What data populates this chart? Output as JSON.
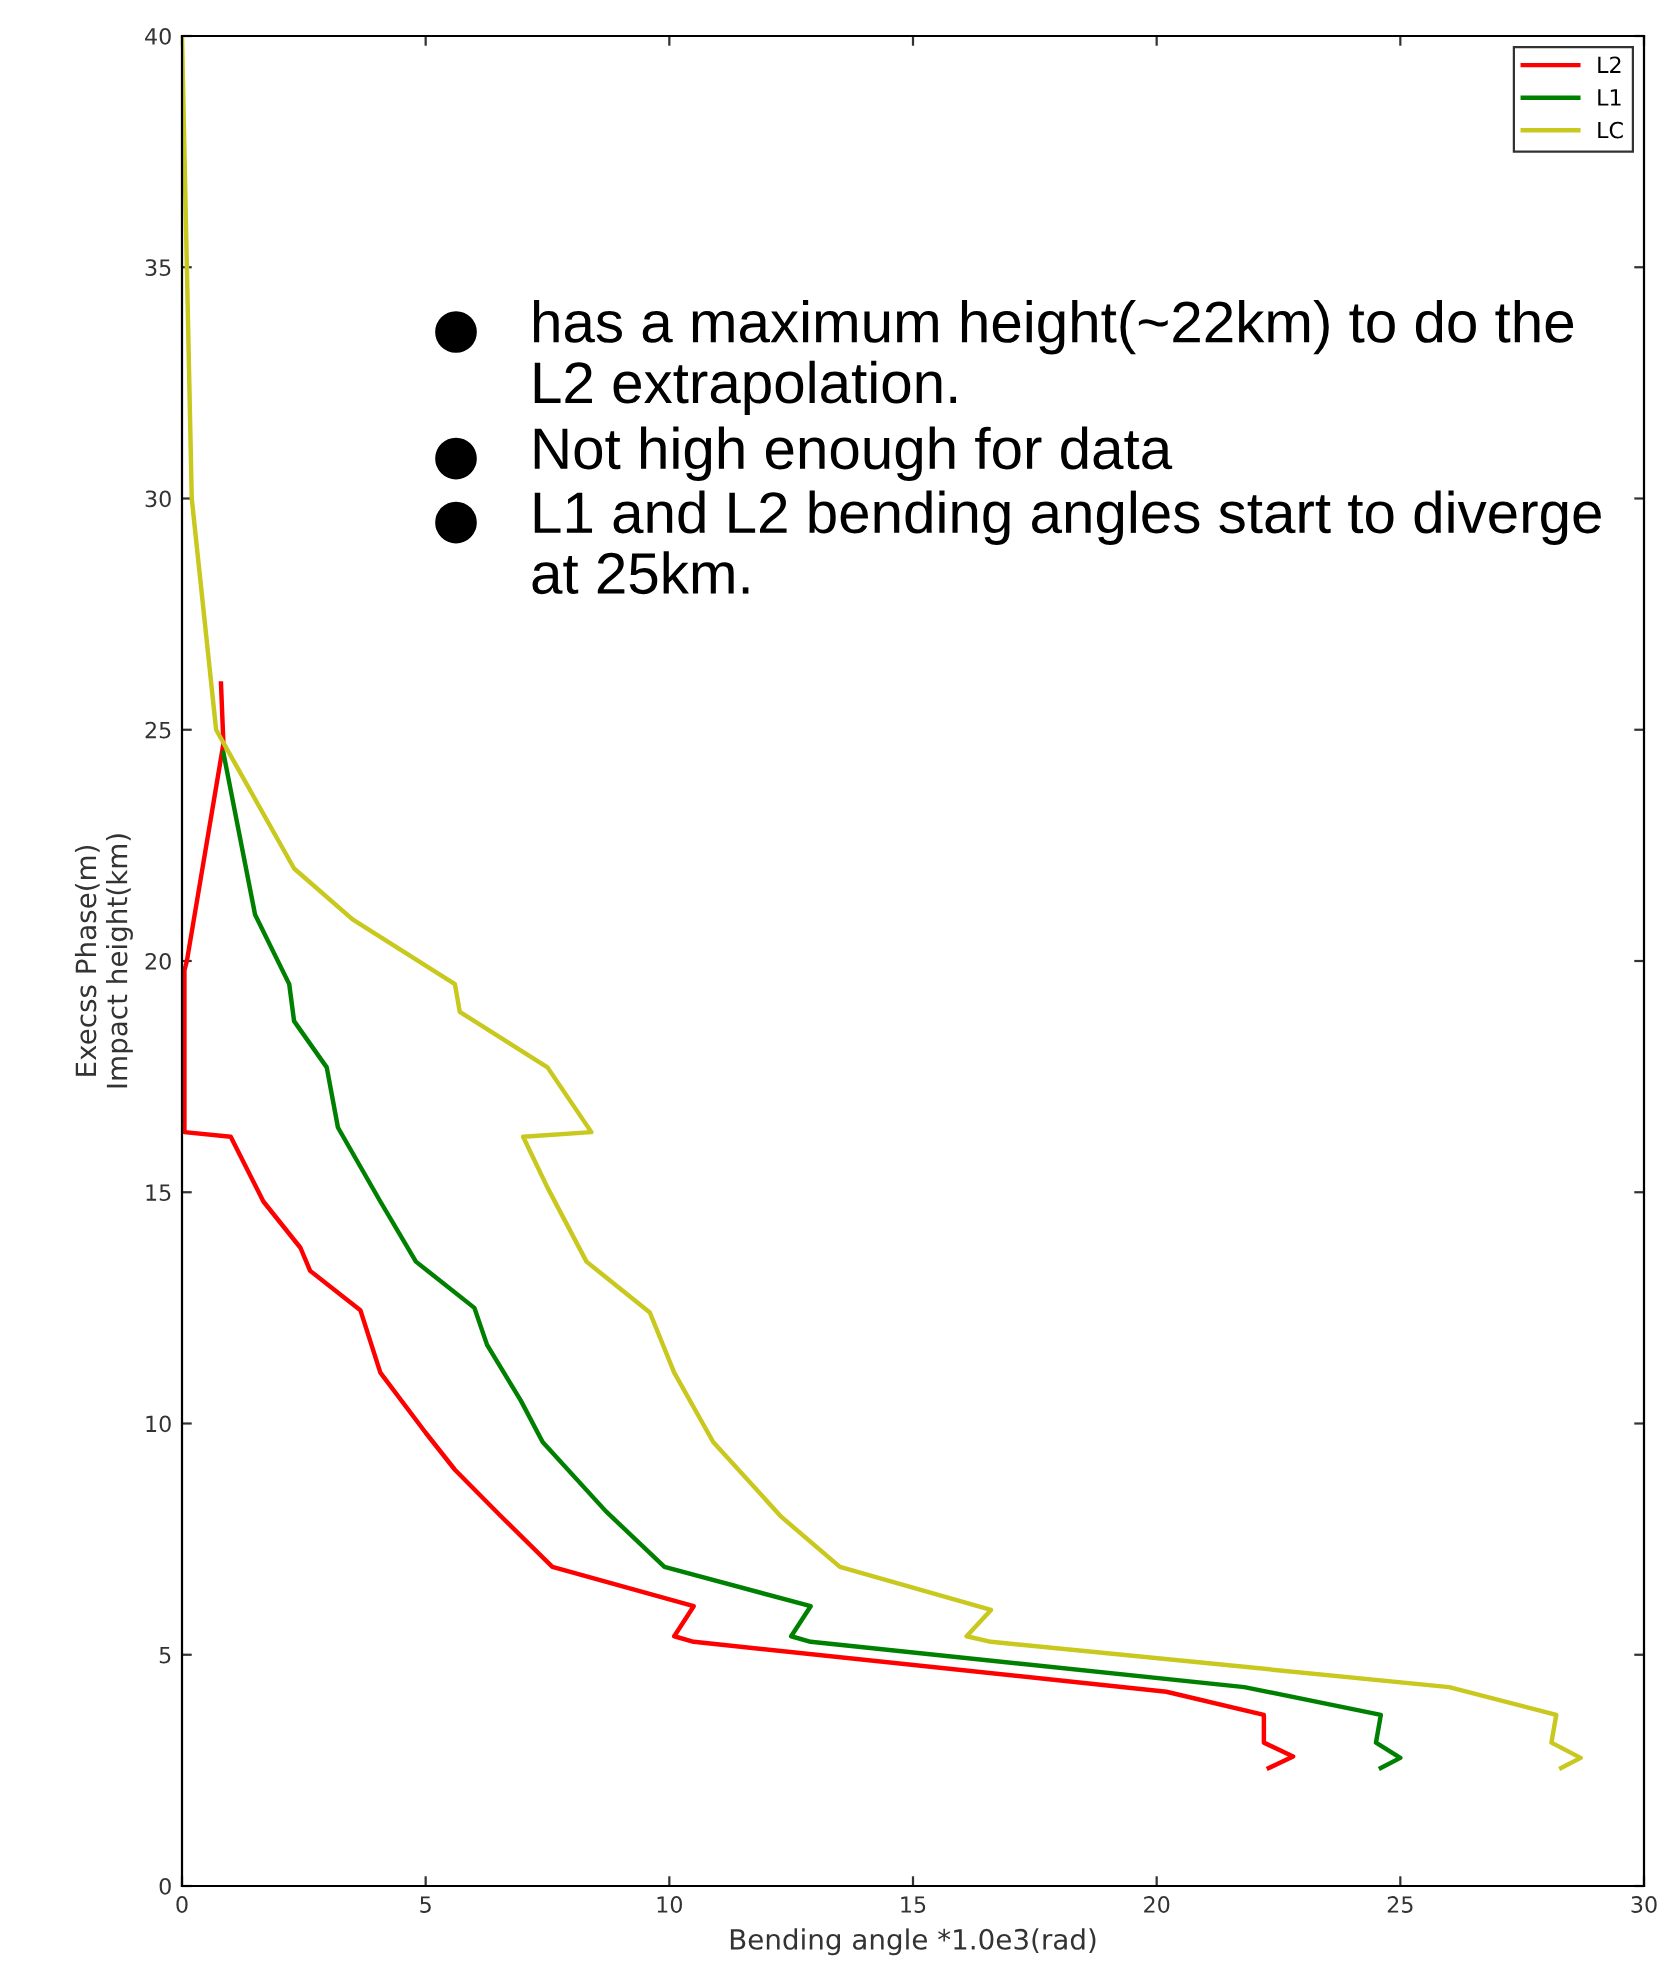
{
  "chart_data": {
    "type": "line",
    "xlabel": "Bending angle *1.0e3(rad)",
    "ylabel": "Execss Phase(m)\nImpact height(km)",
    "xlim": [
      0,
      30
    ],
    "xticks": [
      0,
      5,
      10,
      15,
      20,
      25,
      30
    ],
    "ylim": [
      0,
      40
    ],
    "yticks": [
      0,
      5,
      10,
      15,
      20,
      25,
      30,
      35,
      40
    ],
    "grid": false,
    "legend": "top right",
    "line_style": "solid",
    "marker": "none",
    "series": [
      {
        "name": "L2",
        "color": "#ff0000",
        "x": [
          0.8,
          0.85,
          0.1,
          0.05,
          0.05,
          1.0,
          1.67,
          2.43,
          2.63,
          3.66,
          4.07,
          5.0,
          5.6,
          6.54,
          7.6,
          10.5,
          10.1,
          10.5,
          20.2,
          22.2,
          22.2,
          22.8,
          22.3
        ],
        "values": [
          26,
          24.7,
          20,
          19.8,
          16.3,
          16.2,
          14.8,
          13.8,
          13.3,
          12.45,
          11.1,
          9.8,
          9.0,
          8.0,
          6.9,
          6.05,
          5.4,
          5.28,
          4.2,
          3.7,
          3.1,
          2.8,
          2.55
        ]
      },
      {
        "name": "L1",
        "color": "#008000",
        "x": [
          0.85,
          1.5,
          2.2,
          2.3,
          2.97,
          3.2,
          4.07,
          4.8,
          6.0,
          6.26,
          6.95,
          7.4,
          8.7,
          9.9,
          12.9,
          12.5,
          12.9,
          21.8,
          24.6,
          24.5,
          25.0,
          24.6
        ],
        "values": [
          24.5,
          21.0,
          19.5,
          18.7,
          17.7,
          16.4,
          14.8,
          13.5,
          12.5,
          11.7,
          10.5,
          9.6,
          8.1,
          6.9,
          6.05,
          5.4,
          5.28,
          4.3,
          3.7,
          3.1,
          2.77,
          2.55
        ]
      },
      {
        "name": "LC",
        "color": "#c8c81e",
        "x": [
          0.0,
          0.1,
          0.2,
          0.5,
          0.7,
          2.3,
          3.5,
          5.0,
          5.6,
          5.7,
          7.5,
          8.4,
          7.0,
          7.5,
          8.3,
          9.6,
          10.1,
          10.9,
          12.3,
          13.5,
          16.6,
          16.1,
          16.6,
          26.0,
          28.2,
          28.1,
          28.7,
          28.3
        ],
        "values": [
          40,
          35,
          30,
          27,
          25,
          22.0,
          20.9,
          19.9,
          19.5,
          18.9,
          17.7,
          16.3,
          16.2,
          15.1,
          13.5,
          12.4,
          11.1,
          9.6,
          7.98,
          6.9,
          5.97,
          5.4,
          5.28,
          4.3,
          3.7,
          3.1,
          2.77,
          2.55
        ]
      }
    ],
    "annotations": [
      "has a maximum height(~22km) to do the L2 extrapolation.",
      "Not high enough for data",
      "L1 and L2 bending angles start to diverge at 25km."
    ]
  }
}
